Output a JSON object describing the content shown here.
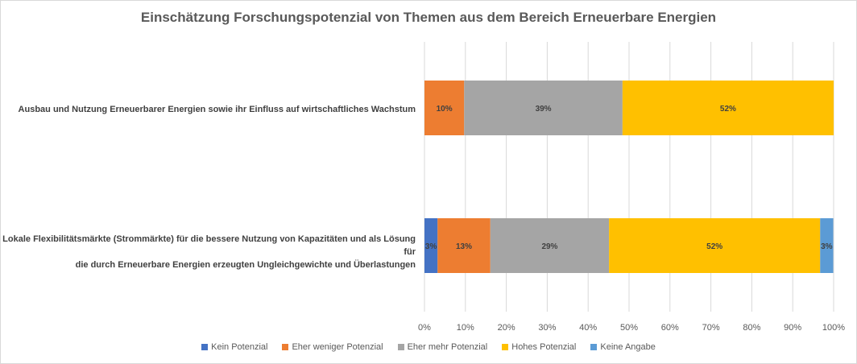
{
  "chart_data": {
    "type": "bar",
    "orientation": "horizontal",
    "stacked": true,
    "title": "Einschätzung Forschungspotenzial von Themen aus dem Bereich Erneuerbare Energien",
    "categories": [
      "Ausbau und Nutzung Erneuerbarer Energien sowie ihr Einfluss auf wirtschaftliches Wachstum",
      "Lokale Flexibilitätsmärkte (Strommärkte) für die bessere Nutzung von Kapazitäten und als Lösung für die durch Erneuerbare Energien erzeugten Ungleichgewichte und Überlastungen"
    ],
    "category_lines": [
      [
        "Ausbau und Nutzung Erneuerbarer Energien sowie ihr Einfluss auf wirtschaftliches Wachstum"
      ],
      [
        "Lokale Flexibilitätsmärkte (Strommärkte) für die bessere Nutzung von Kapazitäten und als Lösung für",
        "die durch Erneuerbare Energien erzeugten Ungleichgewichte und Überlastungen"
      ]
    ],
    "series": [
      {
        "name": "Kein Potenzial",
        "color": "#4472c4",
        "values": [
          0,
          3.2
        ]
      },
      {
        "name": "Eher weniger Potenzial",
        "color": "#ed7d31",
        "values": [
          9.7,
          12.9
        ]
      },
      {
        "name": "Eher mehr Potenzial",
        "color": "#a5a5a5",
        "values": [
          38.7,
          29.0
        ]
      },
      {
        "name": "Hohes Potenzial",
        "color": "#ffc000",
        "values": [
          51.6,
          51.6
        ]
      },
      {
        "name": "Keine Angabe",
        "color": "#5b9bd5",
        "values": [
          0,
          3.2
        ]
      }
    ],
    "data_labels": [
      [
        "",
        "10%",
        "39%",
        "52%",
        ""
      ],
      [
        "3%",
        "13%",
        "29%",
        "52%",
        "3%"
      ]
    ],
    "xlim": [
      0,
      100
    ],
    "xticks": [
      "0%",
      "10%",
      "20%",
      "30%",
      "40%",
      "50%",
      "60%",
      "70%",
      "80%",
      "90%",
      "100%"
    ],
    "grid": true,
    "legend_position": "bottom"
  }
}
